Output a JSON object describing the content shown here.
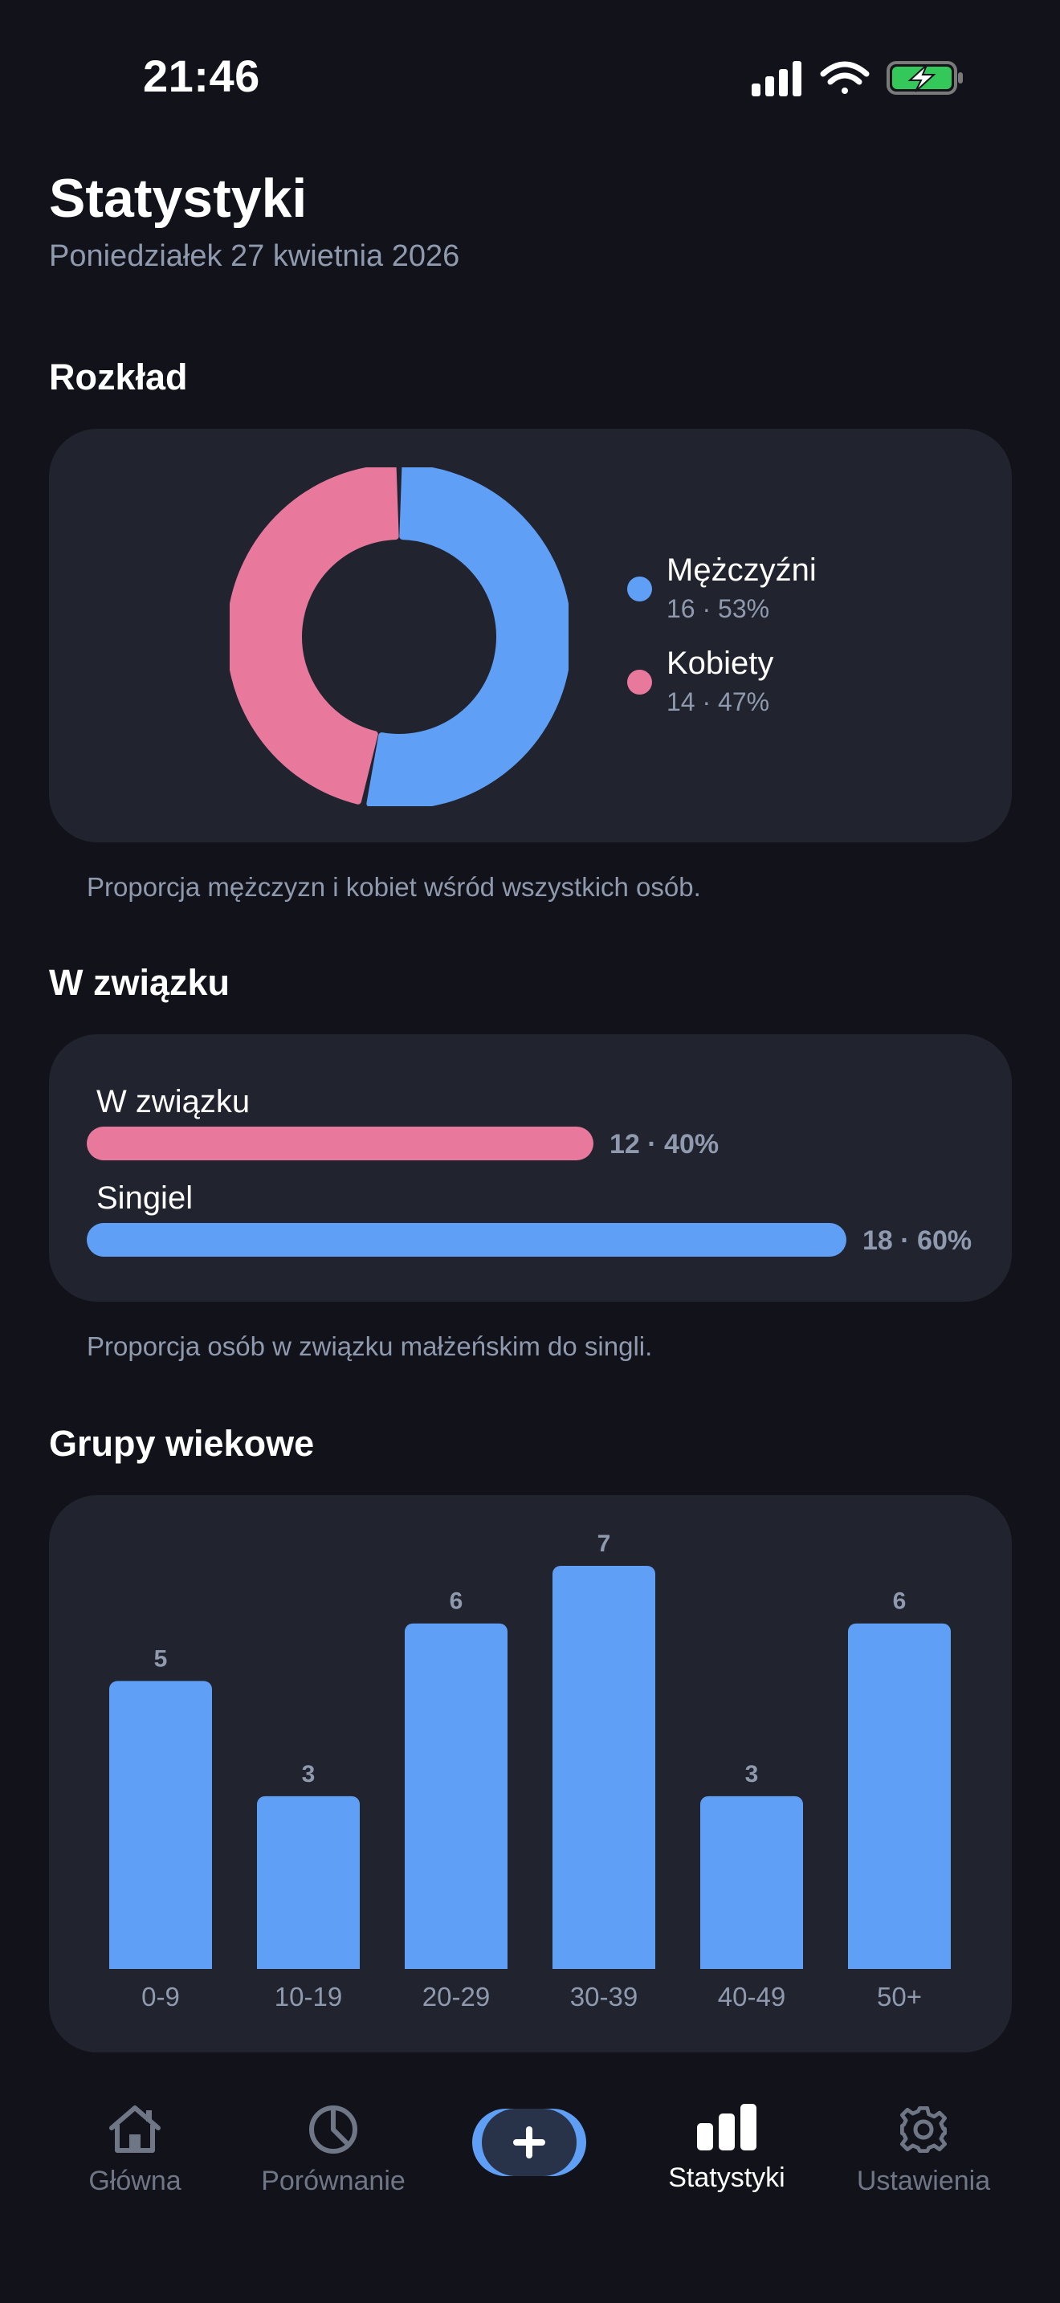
{
  "status_bar": {
    "time": "21:46",
    "battery_color": "#34c759"
  },
  "header": {
    "title": "Statystyki",
    "date": "Poniedziałek 27 kwietnia 2026"
  },
  "distribution": {
    "title": "Rozkład",
    "caption": "Proporcja mężczyzn i kobiet wśród wszystkich osób.",
    "items": [
      {
        "name": "Mężczyźni",
        "value": "16 · 53%",
        "count": 16,
        "color": "#5f9ff5"
      },
      {
        "name": "Kobiety",
        "value": "14 · 47%",
        "count": 14,
        "color": "#e8789c"
      }
    ]
  },
  "relationship": {
    "title": "W związku",
    "caption": "Proporcja osób w związku małżeńskim do singli.",
    "items": [
      {
        "name": "W związku",
        "value": "12 · 40%",
        "fraction": 0.4,
        "color": "#e8789c"
      },
      {
        "name": "Singiel",
        "value": "18 · 60%",
        "fraction": 0.6,
        "color": "#5f9ff5"
      }
    ]
  },
  "age_groups": {
    "title": "Grupy wiekowe"
  },
  "chart_data": {
    "type": "bar",
    "categories": [
      "0-9",
      "10-19",
      "20-29",
      "30-39",
      "40-49",
      "50+"
    ],
    "values": [
      5,
      3,
      6,
      7,
      3,
      6
    ],
    "color": "#5f9ff5"
  },
  "tabbar": {
    "items": [
      {
        "label": "Główna",
        "icon": "home-icon",
        "active": false
      },
      {
        "label": "Porównanie",
        "icon": "pie-chart-icon",
        "active": false
      },
      {
        "label": "Statystyki",
        "icon": "bar-chart-icon",
        "active": true
      },
      {
        "label": "Ustawienia",
        "icon": "gear-icon",
        "active": false
      }
    ],
    "add_icon": "plus-icon"
  }
}
